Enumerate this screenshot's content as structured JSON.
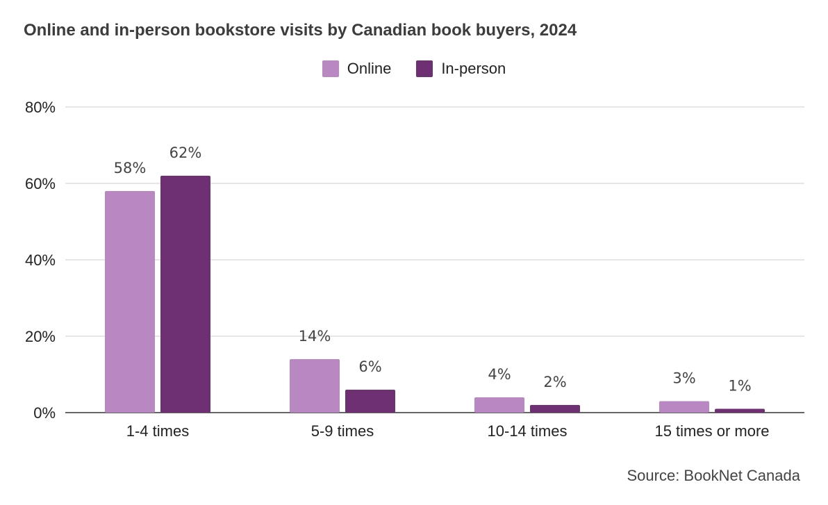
{
  "chart_data": {
    "type": "bar",
    "title": "Online and in-person bookstore visits by Canadian book buyers, 2024",
    "categories": [
      "1-4 times",
      "5-9 times",
      "10-14 times",
      "15 times or more"
    ],
    "series": [
      {
        "name": "Online",
        "color": "#b987c1",
        "values": [
          58,
          14,
          4,
          3
        ],
        "labels": [
          "58%",
          "14%",
          "4%",
          "3%"
        ]
      },
      {
        "name": "In-person",
        "color": "#6e2f73",
        "values": [
          62,
          6,
          2,
          1
        ],
        "labels": [
          "62%",
          "6%",
          "2%",
          "1%"
        ]
      }
    ],
    "ylim": [
      0,
      80
    ],
    "yticks": [
      0,
      20,
      40,
      60,
      80
    ],
    "ytick_labels": [
      "0%",
      "20%",
      "40%",
      "60%",
      "80%"
    ],
    "xlabel": "",
    "ylabel": "",
    "grid": true,
    "legend_position": "top-center",
    "source": "Source: BookNet Canada"
  }
}
